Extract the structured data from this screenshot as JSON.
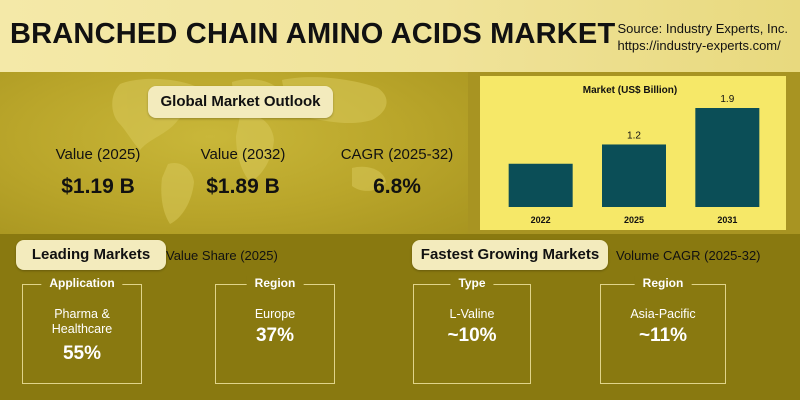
{
  "header": {
    "title": "BRANCHED CHAIN AMINO ACIDS MARKET",
    "source_line1": "Source: Industry Experts, Inc.",
    "source_line2": "https://industry-experts.com/"
  },
  "outlook": {
    "title": "Global Market Outlook",
    "kpis": [
      {
        "label": "Value (2025)",
        "value": "$1.19 B"
      },
      {
        "label": "Value (2032)",
        "value": "$1.89 B"
      },
      {
        "label": "CAGR (2025-32)",
        "value": "6.8%"
      }
    ]
  },
  "chart_data": {
    "type": "bar",
    "title": "Market (US$ Billion)",
    "categories": [
      "2022",
      "2025",
      "2031"
    ],
    "values": [
      null,
      1.2,
      1.9
    ],
    "data_labels": [
      "",
      "1.2",
      "1.9"
    ],
    "bar_color": "#0b4e57",
    "grid": false,
    "legend": "none"
  },
  "leading": {
    "title": "Leading Markets",
    "subtitle": "Value Share (2025)",
    "cards": [
      {
        "tag": "Application",
        "label_line1": "Pharma &",
        "label_line2": "Healthcare",
        "value": "55%"
      },
      {
        "tag": "Region",
        "label_line1": "Europe",
        "label_line2": "",
        "value": "37%"
      }
    ]
  },
  "fastest": {
    "title": "Fastest Growing Markets",
    "subtitle": "Volume CAGR (2025-32)",
    "cards": [
      {
        "tag": "Type",
        "label_line1": "L-Valine",
        "label_line2": "",
        "value": "~10%"
      },
      {
        "tag": "Region",
        "label_line1": "Asia-Pacific",
        "label_line2": "",
        "value": "~11%"
      }
    ]
  },
  "colors": {
    "accent_bar": "#0b4e57",
    "panel_yellow": "#f6e868",
    "background_olive": "#897910"
  }
}
